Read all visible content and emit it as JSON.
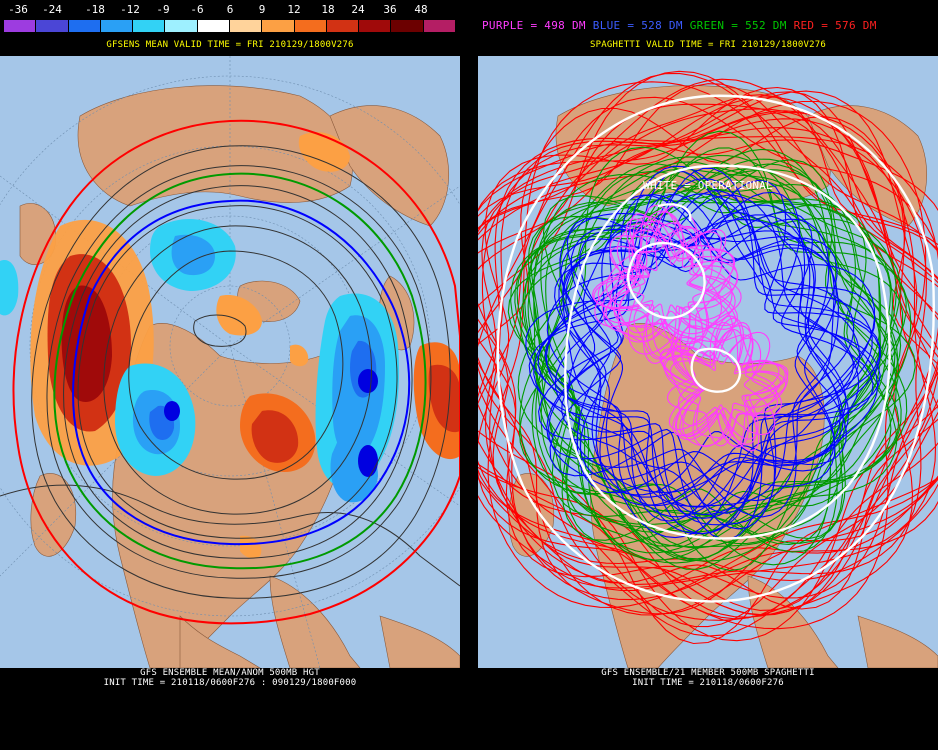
{
  "left": {
    "scale": {
      "labels": [
        "-36",
        "-24",
        "-18",
        "-12",
        "-9",
        "-6",
        "6",
        "9",
        "12",
        "18",
        "24",
        "36",
        "48"
      ],
      "colors": [
        "#9d3ce0",
        "#4b46d6",
        "#1e6ef0",
        "#2aa0f5",
        "#32d2f5",
        "#9ef0ff",
        "#ffffff",
        "#ffd39b",
        "#fca044",
        "#f46d1e",
        "#d23214",
        "#a00a0a",
        "#6c0000",
        "#b41e64"
      ]
    },
    "valid_time": "GFSENS MEAN VALID TIME = FRI 210129/1800V276",
    "footer_line1": "GFS ENSEMBLE MEAN/ANOM 500MB HGT",
    "footer_line2": "INIT TIME = 210118/0600F276 : 090129/1800F000"
  },
  "right": {
    "legend": {
      "purple": "PURPLE = 498 DM",
      "blue": "BLUE = 528 DM",
      "green": "GREEN = 552 DM",
      "red": "RED = 576 DM"
    },
    "valid_time": "SPAGHETTI VALID TIME = FRI 210129/1800V276",
    "operational": "WHITE = OPERATIONAL",
    "footer_line1": "GFS ENSEMBLE/21 MEMBER 500MB SPAGHETTI",
    "footer_line2": "INIT TIME = 210118/0600F276"
  },
  "colors": {
    "ocean": "#a5c6e8",
    "land": "#d8a27c",
    "purple": "#ff3cff",
    "blue": "#0000ff",
    "green": "#009a00",
    "red": "#ff0000",
    "white": "#ffffff"
  }
}
